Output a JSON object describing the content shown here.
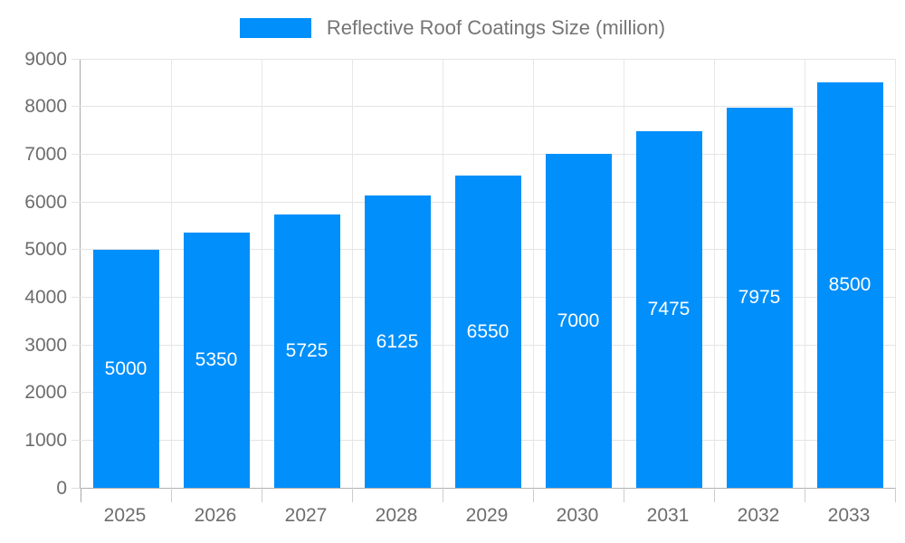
{
  "legend": {
    "label": "Reflective Roof Coatings Size (million)"
  },
  "chart_data": {
    "type": "bar",
    "title": "Reflective Roof Coatings Size (million)",
    "series": [
      {
        "name": "Reflective Roof Coatings Size (million)",
        "values": [
          5000,
          5350,
          5725,
          6125,
          6550,
          7000,
          7475,
          7975,
          8500
        ]
      }
    ],
    "categories": [
      "2025",
      "2026",
      "2027",
      "2028",
      "2029",
      "2030",
      "2031",
      "2032",
      "2033"
    ],
    "bar_value_labels": [
      "5000",
      "5350",
      "5725",
      "6125",
      "6550",
      "7000",
      "7475",
      "7975",
      "8500"
    ],
    "xlabel": "",
    "ylabel": "",
    "ylim": [
      0,
      9000
    ],
    "y_tick_step": 1000,
    "y_tick_labels": [
      "0",
      "1000",
      "2000",
      "3000",
      "4000",
      "5000",
      "6000",
      "7000",
      "8000",
      "9000"
    ],
    "grid": "on",
    "legend_position": "top-center",
    "colors": {
      "bar": "#008ffb",
      "bar_label": "#ffffff",
      "axis_line": "#a8a8a8",
      "grid_line": "#e4e4e4",
      "axis_text": "#6d6d6d",
      "legend_text": "#757575"
    }
  }
}
